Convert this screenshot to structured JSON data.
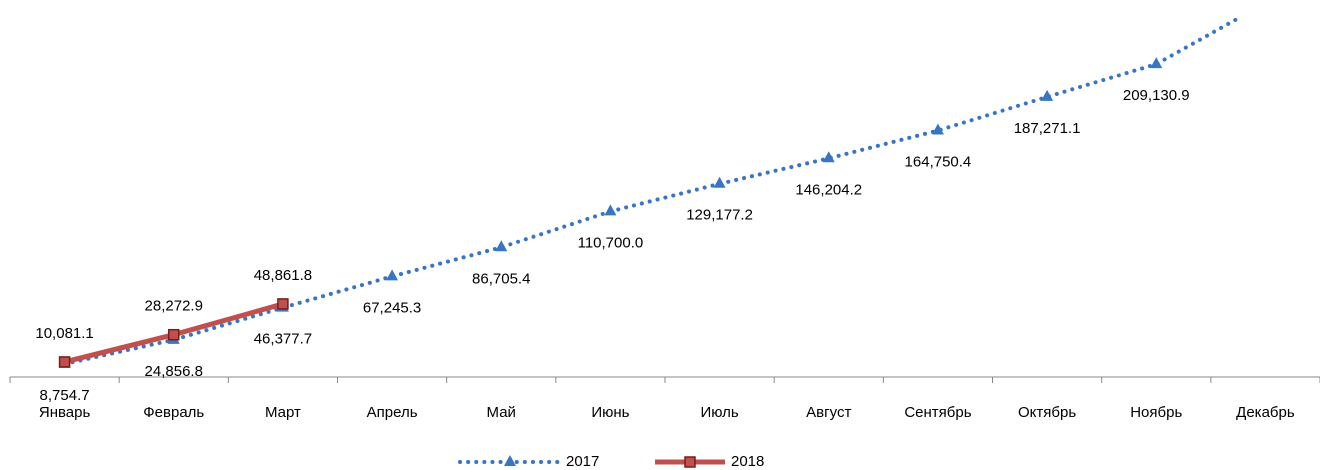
{
  "chart_data": {
    "type": "line",
    "categories": [
      "Январь",
      "Февраль",
      "Март",
      "Апрель",
      "Май",
      "Июнь",
      "Июль",
      "Август",
      "Сентябрь",
      "Октябрь",
      "Ноябрь",
      "Декабрь"
    ],
    "series": [
      {
        "name": "2017",
        "color": "#3a75c4",
        "values": [
          8754.7,
          24856.8,
          46377.7,
          67245.3,
          86705.4,
          110700.0,
          129177.2,
          146204.2,
          164750.4,
          187271.1,
          209130.9,
          250000
        ],
        "value_labels": [
          "8,754.7",
          "24,856.8",
          "46,377.7",
          "67,245.3",
          "86,705.4",
          "110,700.0",
          "129,177.2",
          "146,204.2",
          "164,750.4",
          "187,271.1",
          "209,130.9",
          null
        ]
      },
      {
        "name": "2018",
        "color": "#c0504d",
        "values": [
          10081.1,
          28272.9,
          48861.8,
          null,
          null,
          null,
          null,
          null,
          null,
          null,
          null,
          null
        ],
        "value_labels": [
          "10,081.1",
          "28,272.9",
          "48,861.8",
          null,
          null,
          null,
          null,
          null,
          null,
          null,
          null,
          null
        ]
      }
    ],
    "ylim": [
      0,
      240000
    ]
  }
}
